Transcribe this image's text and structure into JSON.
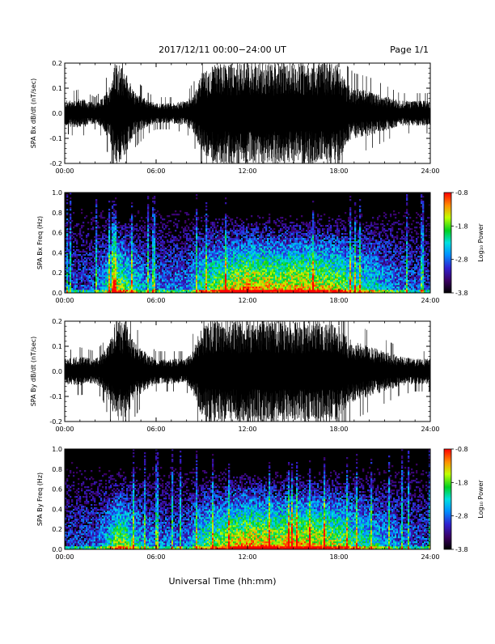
{
  "header": {
    "title": "2017/12/11   00:00−24:00 UT",
    "page": "Page 1/1"
  },
  "xaxis": {
    "label": "Universal Time (hh:mm)",
    "range_hours": [
      0,
      24
    ],
    "ticks": [
      "00:00",
      "06:00",
      "12:00",
      "18:00",
      "24:00"
    ]
  },
  "chart_data": [
    {
      "type": "line",
      "ylabel": "SPA Bx dB/dt (nT/sec)",
      "ylim": [
        -0.2,
        0.2
      ],
      "yticks": [
        "-0.2",
        "-0.1",
        "0.0",
        "0.1",
        "0.2"
      ],
      "x_range_hours": [
        0,
        24
      ],
      "envelope": {
        "hours": [
          0,
          1,
          2,
          2.5,
          3,
          3.3,
          3.5,
          4,
          4.5,
          5,
          5.5,
          6,
          7,
          8,
          8.5,
          9,
          9.5,
          10,
          10.5,
          11,
          12,
          13,
          14,
          15,
          16,
          17,
          17.5,
          18,
          18.5,
          19,
          20,
          21,
          22,
          23,
          24
        ],
        "amplitude": [
          0.05,
          0.06,
          0.04,
          0.06,
          0.12,
          0.2,
          0.2,
          0.17,
          0.09,
          0.07,
          0.05,
          0.04,
          0.04,
          0.05,
          0.08,
          0.16,
          0.18,
          0.2,
          0.2,
          0.2,
          0.2,
          0.2,
          0.2,
          0.2,
          0.2,
          0.2,
          0.2,
          0.2,
          0.12,
          0.1,
          0.09,
          0.07,
          0.05,
          0.05,
          0.05
        ]
      }
    },
    {
      "type": "heatmap",
      "ylabel": "SPA Bx Freq (Hz)",
      "ylim": [
        0,
        1
      ],
      "yticks": [
        "0.0",
        "0.2",
        "0.4",
        "0.6",
        "0.8",
        "1.0"
      ],
      "x_range_hours": [
        0,
        24
      ],
      "colorbar": {
        "label": "Log₁₀ Power",
        "range": [
          -3.8,
          -0.8
        ],
        "ticks": [
          "-0.8",
          "-1.8",
          "-2.8",
          "-3.8"
        ]
      },
      "activity": {
        "hours": [
          0,
          2,
          3,
          3.5,
          4,
          5,
          6,
          8,
          9,
          10,
          11,
          12,
          13,
          14,
          15,
          16,
          17,
          18,
          19,
          20,
          21,
          22,
          23,
          24
        ],
        "level": [
          0.25,
          0.3,
          0.55,
          0.75,
          0.65,
          0.45,
          0.35,
          0.35,
          0.6,
          0.7,
          0.8,
          0.9,
          0.85,
          0.8,
          0.85,
          0.85,
          0.8,
          0.75,
          0.6,
          0.55,
          0.45,
          0.35,
          0.3,
          0.25
        ]
      }
    },
    {
      "type": "line",
      "ylabel": "SPA By dB/dt (nT/sec)",
      "ylim": [
        -0.2,
        0.2
      ],
      "yticks": [
        "-0.2",
        "-0.1",
        "0.0",
        "0.1",
        "0.2"
      ],
      "x_range_hours": [
        0,
        24
      ],
      "envelope": {
        "hours": [
          0,
          1,
          2,
          2.5,
          3,
          3.3,
          3.5,
          4,
          4.5,
          5,
          5.5,
          6,
          7,
          8,
          8.5,
          9,
          9.5,
          10,
          11,
          12,
          13,
          14,
          15,
          16,
          17,
          18,
          18.5,
          19,
          20,
          21,
          22,
          23,
          24
        ],
        "amplitude": [
          0.05,
          0.06,
          0.05,
          0.07,
          0.13,
          0.2,
          0.2,
          0.2,
          0.12,
          0.09,
          0.07,
          0.05,
          0.05,
          0.05,
          0.1,
          0.18,
          0.2,
          0.2,
          0.2,
          0.2,
          0.2,
          0.2,
          0.2,
          0.2,
          0.2,
          0.2,
          0.14,
          0.12,
          0.1,
          0.08,
          0.06,
          0.05,
          0.05
        ]
      }
    },
    {
      "type": "heatmap",
      "ylabel": "SPA By Freq (Hz)",
      "ylim": [
        0,
        1
      ],
      "yticks": [
        "0.0",
        "0.2",
        "0.4",
        "0.6",
        "0.8",
        "1.0"
      ],
      "x_range_hours": [
        0,
        24
      ],
      "colorbar": {
        "label": "Log₁₀ Power",
        "range": [
          -3.8,
          -0.8
        ],
        "ticks": [
          "-0.8",
          "-1.8",
          "-2.8",
          "-3.8"
        ]
      },
      "activity": {
        "hours": [
          0,
          2,
          3,
          3.5,
          4,
          5,
          6,
          8,
          9,
          10,
          11,
          12,
          13,
          14,
          15,
          16,
          17,
          18,
          19,
          20,
          21,
          22,
          23,
          24
        ],
        "level": [
          0.25,
          0.3,
          0.55,
          0.75,
          0.65,
          0.45,
          0.35,
          0.35,
          0.6,
          0.7,
          0.8,
          0.9,
          0.85,
          0.8,
          0.85,
          0.85,
          0.8,
          0.75,
          0.6,
          0.55,
          0.45,
          0.35,
          0.3,
          0.25
        ]
      }
    }
  ]
}
